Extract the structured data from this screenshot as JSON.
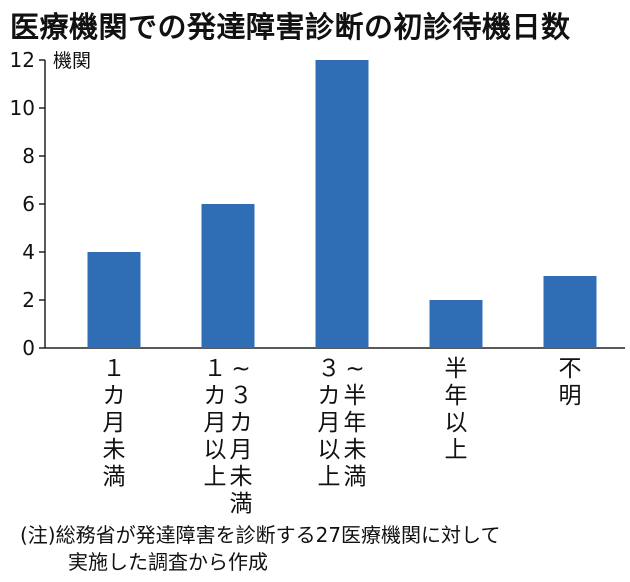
{
  "title": "医療機関での発達障害診断の初診待機日数",
  "note": {
    "line1": "(注)総務省が発達障害を診断する27医療機関に対して",
    "line2": "実施した調査から作成"
  },
  "colors": {
    "bar": "#2f6db5",
    "axis": "#222222"
  },
  "chart_data": {
    "type": "bar",
    "title": "医療機関での発達障害診断の初診待機日数",
    "ylabel": "機関",
    "xlabel": "",
    "ylim": [
      0,
      12
    ],
    "yticks": [
      0,
      2,
      4,
      6,
      8,
      10,
      12
    ],
    "grid": false,
    "categories": [
      "1カ月未満",
      "~3カ月未満 1カ月以上",
      "~半年未満 3カ月以上",
      "半年以上",
      "不明"
    ],
    "category_columns": [
      [
        [
          "１",
          "カ",
          "月",
          "未",
          "満"
        ]
      ],
      [
        [
          "~",
          "３",
          "カ",
          "月",
          "未",
          "満"
        ],
        [
          "１",
          "カ",
          "月",
          "以",
          "上"
        ]
      ],
      [
        [
          "~",
          "半",
          "年",
          "未",
          "満"
        ],
        [
          "３",
          "カ",
          "月",
          "以",
          "上"
        ]
      ],
      [
        [
          "半",
          "年",
          "以",
          "上"
        ]
      ],
      [
        [
          "不",
          "明"
        ]
      ]
    ],
    "values": [
      4,
      6,
      12,
      2,
      3
    ]
  }
}
